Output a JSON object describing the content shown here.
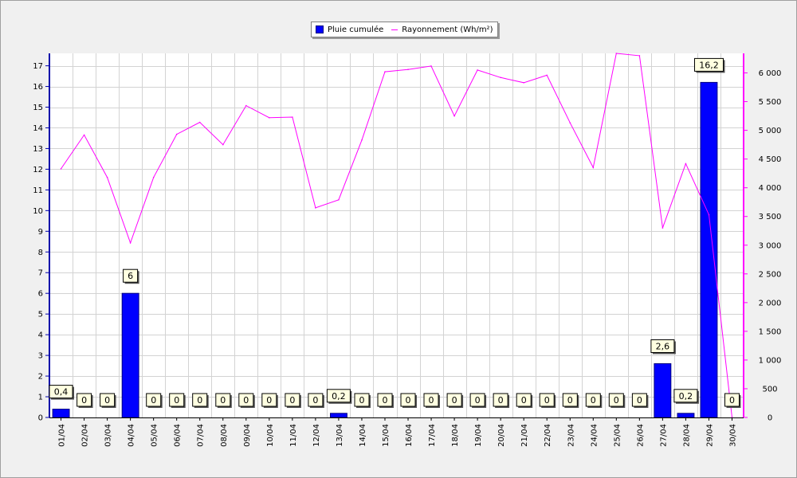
{
  "legend": {
    "rain_label": "Pluie cumulée",
    "radiation_label": "Rayonnement (Wh/m²)"
  },
  "colors": {
    "rain_bar": "#0000ff",
    "radiation_line": "#ff00ff",
    "left_axis": "#0000aa",
    "right_axis": "#ff00ff",
    "label_box": "#ffffe1"
  },
  "chart_data": {
    "type": "bar",
    "categories": [
      "01/04",
      "02/04",
      "03/04",
      "04/04",
      "05/04",
      "06/04",
      "07/04",
      "08/04",
      "09/04",
      "10/04",
      "11/04",
      "12/04",
      "13/04",
      "14/04",
      "15/04",
      "16/04",
      "17/04",
      "18/04",
      "19/04",
      "20/04",
      "21/04",
      "22/04",
      "23/04",
      "24/04",
      "25/04",
      "26/04",
      "27/04",
      "28/04",
      "29/04",
      "30/04"
    ],
    "series": [
      {
        "name": "Pluie cumulée",
        "type": "bar",
        "axis": "left",
        "values": [
          0.4,
          0,
          0,
          6,
          0,
          0,
          0,
          0,
          0,
          0,
          0,
          0,
          0.2,
          0,
          0,
          0,
          0,
          0,
          0,
          0,
          0,
          0,
          0,
          0,
          0,
          0,
          2.6,
          0.2,
          16.2,
          0
        ],
        "labels": [
          "0,4",
          "0",
          "0",
          "6",
          "0",
          "0",
          "0",
          "0",
          "0",
          "0",
          "0",
          "0",
          "0,2",
          "0",
          "0",
          "0",
          "0",
          "0",
          "0",
          "0",
          "0",
          "0",
          "0",
          "0",
          "0",
          "0",
          "2,6",
          "0,2",
          "16,2",
          "0"
        ]
      },
      {
        "name": "Rayonnement (Wh/m²)",
        "type": "line",
        "axis": "right",
        "values": [
          4330,
          4920,
          4180,
          3040,
          4180,
          4930,
          5140,
          4750,
          5430,
          5220,
          5230,
          3650,
          3790,
          4830,
          6020,
          6060,
          6120,
          5250,
          6050,
          5920,
          5830,
          5960,
          5130,
          4350,
          6340,
          6300,
          3300,
          4420,
          3530,
          0
        ]
      }
    ],
    "y_left": {
      "min": 0,
      "max": 17.6,
      "ticks": [
        0,
        1,
        2,
        3,
        4,
        5,
        6,
        7,
        8,
        9,
        10,
        11,
        12,
        13,
        14,
        15,
        16,
        17
      ]
    },
    "y_right": {
      "min": 0,
      "max": 6340,
      "ticks": [
        0,
        500,
        1000,
        1500,
        2000,
        2500,
        3000,
        3500,
        4000,
        4500,
        5000,
        5500,
        6000
      ],
      "tick_labels": [
        "0",
        "500",
        "1 000",
        "1 500",
        "2 000",
        "2 500",
        "3 000",
        "3 500",
        "4 000",
        "4 500",
        "5 000",
        "5 500",
        "6 000"
      ]
    },
    "grid": true,
    "legend_position": "top-center"
  }
}
